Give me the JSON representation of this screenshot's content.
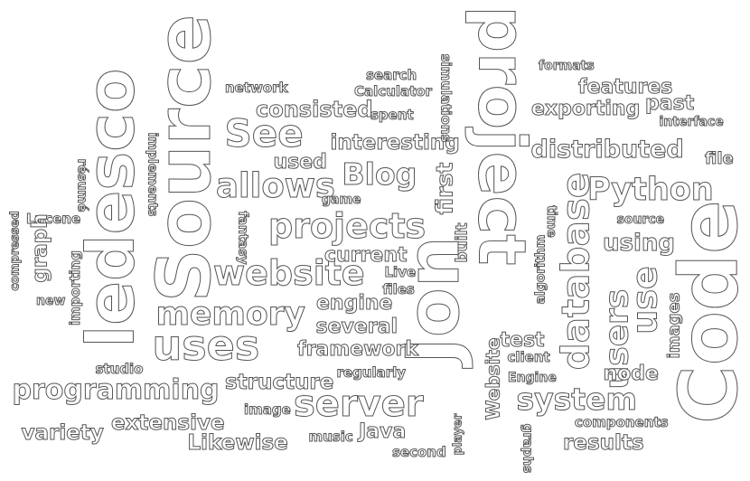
{
  "cloud": {
    "words": [
      "Source",
      "ledesco",
      "Jon",
      "project",
      "Code",
      "uses",
      "server",
      "programming",
      "website",
      "projects",
      "memory",
      "system",
      "database",
      "users",
      "use",
      "Python",
      "distributed",
      "Blog",
      "allows",
      "See",
      "consisted",
      "interesting",
      "exporting",
      "features",
      "past",
      "interface",
      "file",
      "formats",
      "simulations",
      "Calculator",
      "search",
      "network",
      "spent",
      "used",
      "game",
      "first",
      "Lucene",
      "graph",
      "compressed",
      "résumé",
      "implements",
      "new",
      "importing",
      "fantasy",
      "current",
      "Live",
      "built",
      "files",
      "engine",
      "several",
      "framework",
      "regularly",
      "structure",
      "image",
      "studio",
      "variety",
      "extensive",
      "Likewise",
      "music",
      "Java",
      "second",
      "player",
      "Website",
      "graphs",
      "components",
      "results",
      "node",
      "images",
      "test",
      "client",
      "Engine",
      "algorithm",
      "time",
      "source",
      "using"
    ]
  }
}
